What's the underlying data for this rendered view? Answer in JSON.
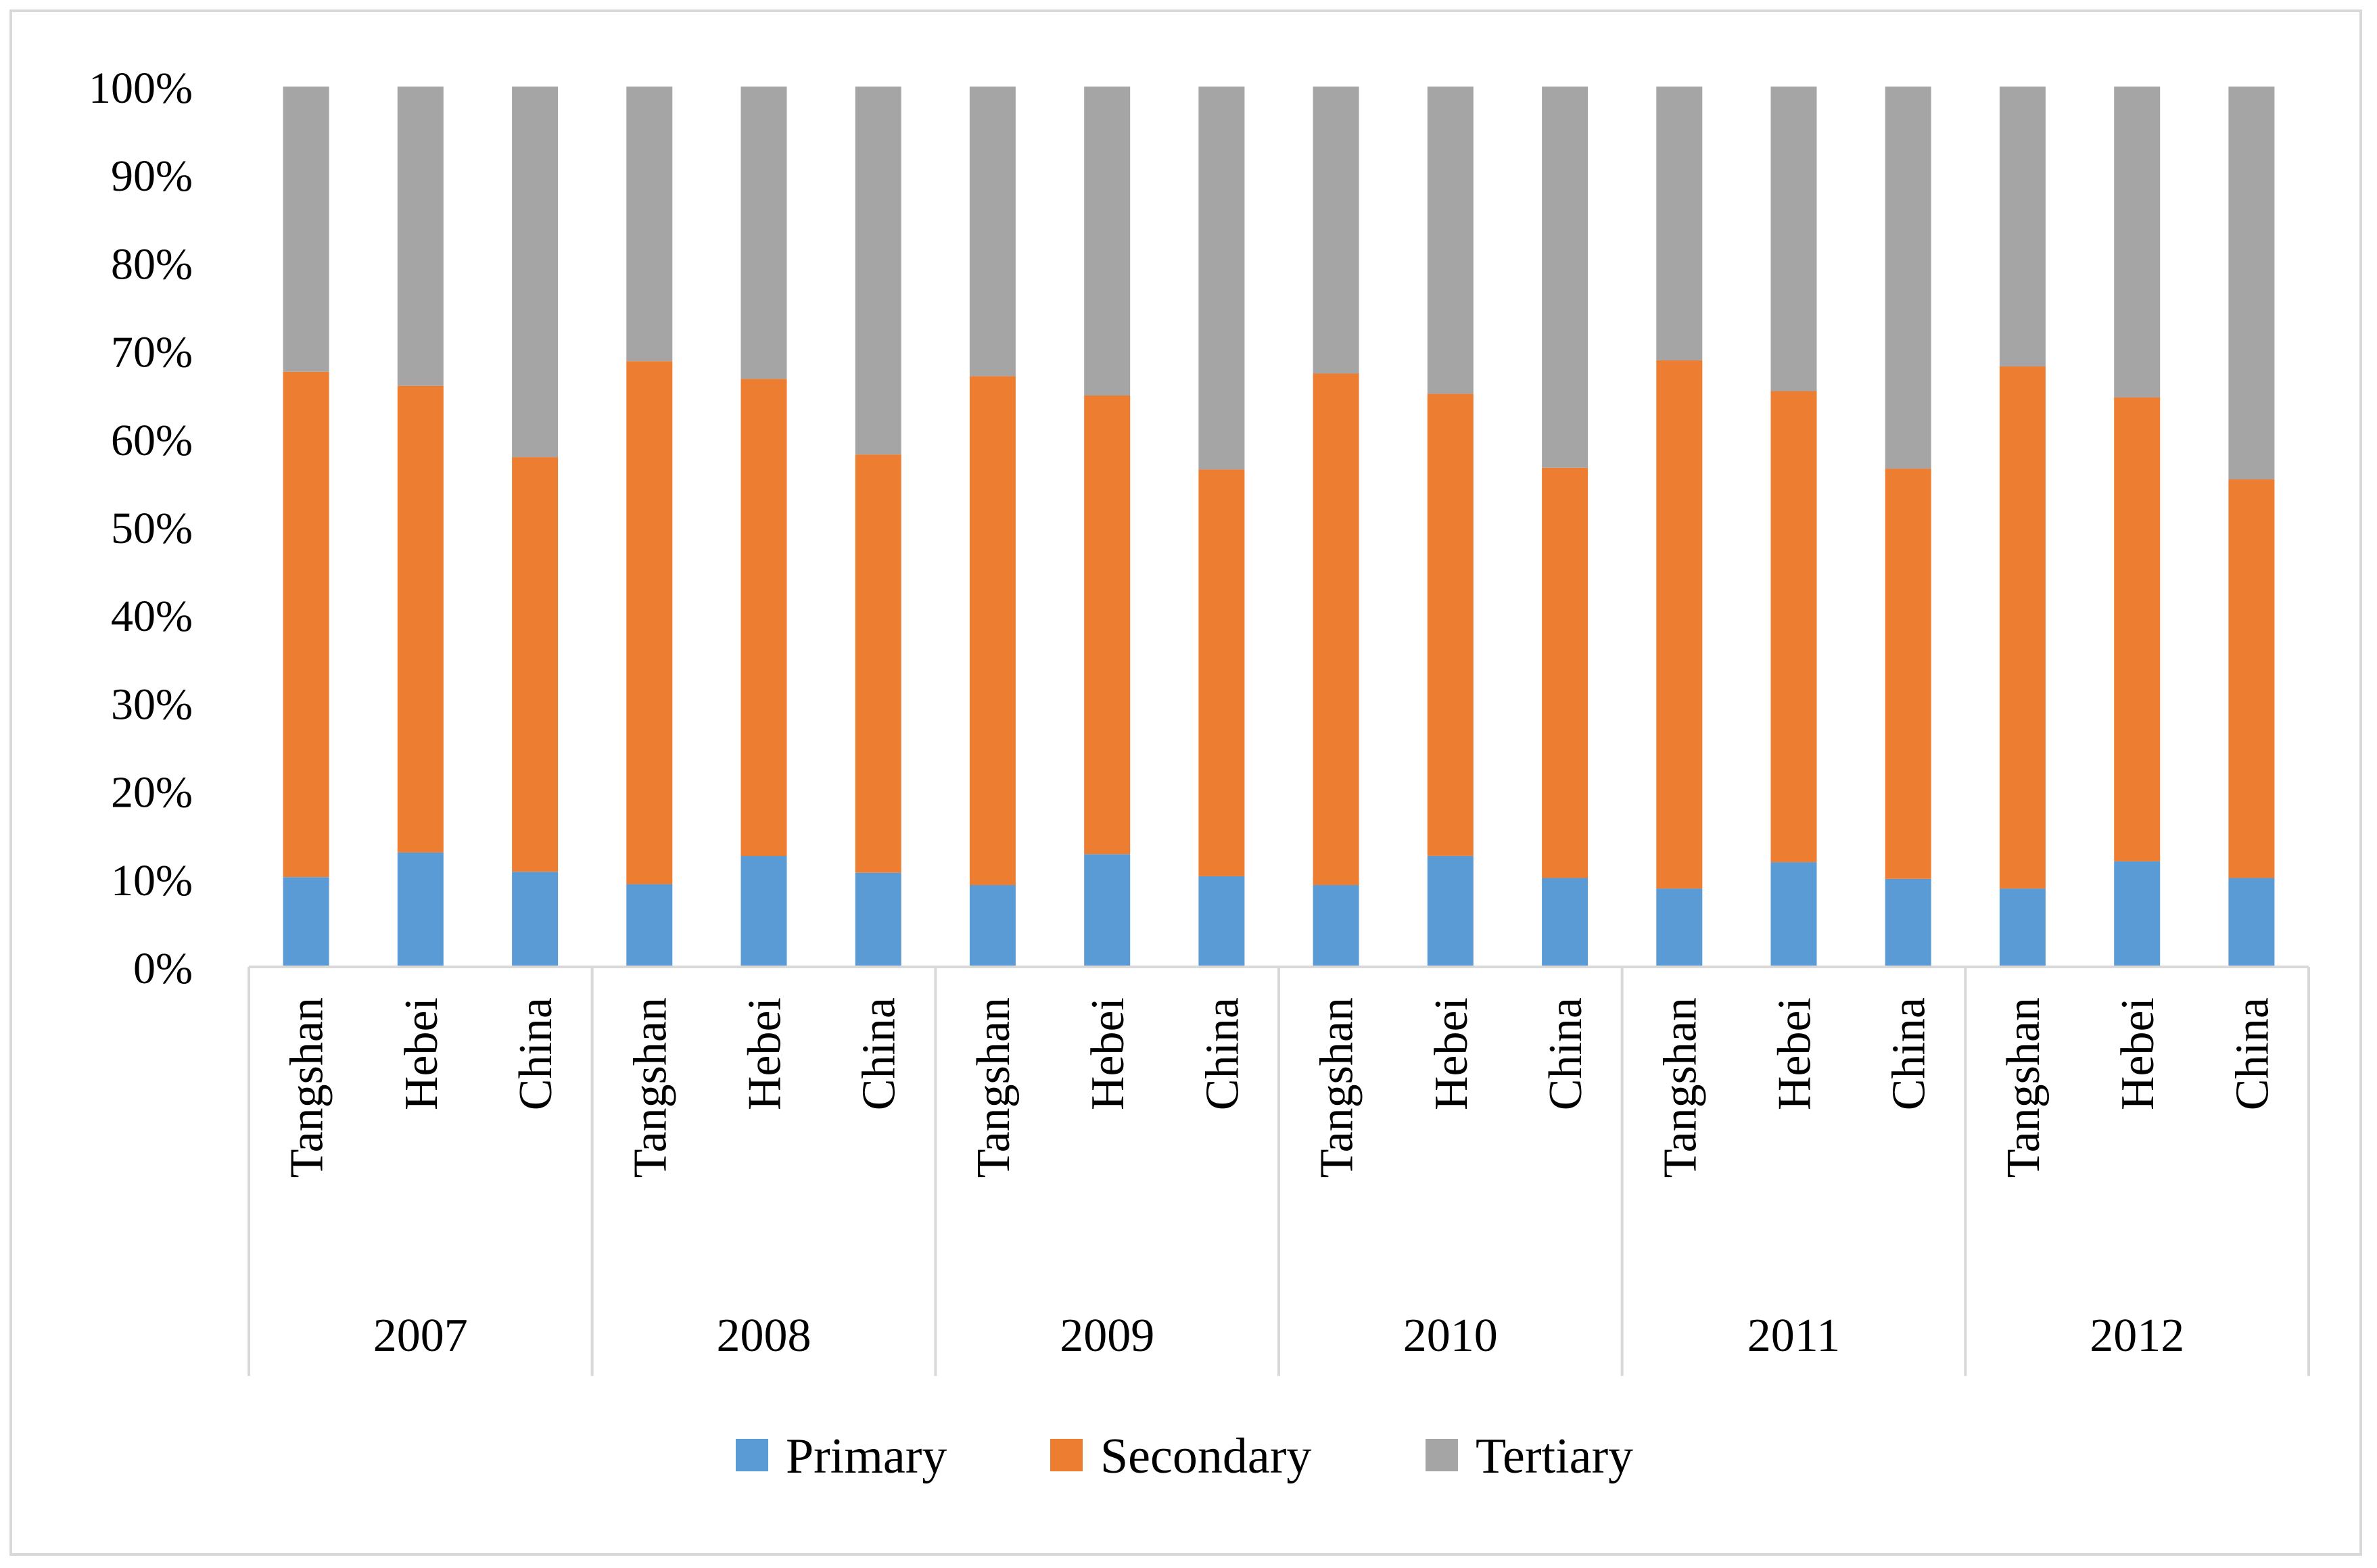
{
  "chart_data": {
    "type": "bar",
    "stacked": "percent",
    "title": "",
    "xlabel": "",
    "ylabel": "",
    "ylim": [
      0,
      100
    ],
    "yticks": [
      "0%",
      "10%",
      "20%",
      "30%",
      "40%",
      "50%",
      "60%",
      "70%",
      "80%",
      "90%",
      "100%"
    ],
    "groups": [
      "2007",
      "2008",
      "2009",
      "2010",
      "2011",
      "2012"
    ],
    "categories_per_group": [
      "Tangshan",
      "Hebei",
      "China"
    ],
    "categories": [
      "Tangshan",
      "Hebei",
      "China",
      "Tangshan",
      "Hebei",
      "China",
      "Tangshan",
      "Hebei",
      "China",
      "Tangshan",
      "Hebei",
      "China",
      "Tangshan",
      "Hebei",
      "China",
      "Tangshan",
      "Hebei",
      "China"
    ],
    "series": [
      {
        "name": "Primary",
        "color": "#5b9bd5",
        "values": [
          10.2,
          13.0,
          10.8,
          9.4,
          12.6,
          10.7,
          9.3,
          12.8,
          10.3,
          9.3,
          12.6,
          10.1,
          8.9,
          11.9,
          10.0,
          8.9,
          12.0,
          10.1
        ]
      },
      {
        "name": "Secondary",
        "color": "#ed7d31",
        "values": [
          57.4,
          53.0,
          47.1,
          59.4,
          54.2,
          47.5,
          57.8,
          52.1,
          46.2,
          58.1,
          52.5,
          46.6,
          60.0,
          53.5,
          46.6,
          59.3,
          52.7,
          45.3
        ]
      },
      {
        "name": "Tertiary",
        "color": "#a5a5a5",
        "values": [
          32.4,
          34.0,
          42.1,
          31.2,
          33.2,
          41.8,
          32.9,
          35.1,
          43.5,
          32.6,
          34.9,
          43.3,
          31.1,
          34.6,
          43.4,
          31.8,
          35.3,
          44.6
        ]
      }
    ],
    "grid": false,
    "legend": "bottom"
  }
}
